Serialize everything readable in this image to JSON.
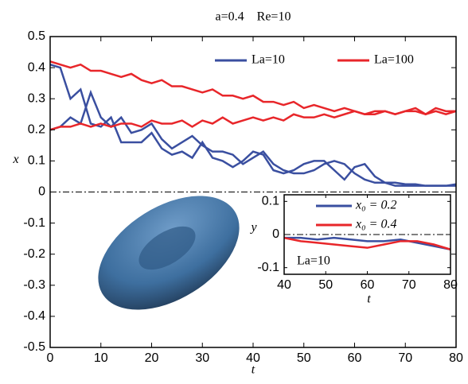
{
  "chart_data": [
    {
      "type": "line",
      "title": "a=0.4    Re=10",
      "xlabel": "t",
      "ylabel": "x",
      "x": [
        0,
        2,
        4,
        6,
        8,
        10,
        12,
        14,
        16,
        18,
        20,
        22,
        24,
        26,
        28,
        30,
        32,
        34,
        36,
        38,
        40,
        42,
        44,
        46,
        48,
        50,
        52,
        54,
        56,
        58,
        60,
        62,
        64,
        66,
        68,
        70,
        72,
        74,
        76,
        78,
        80
      ],
      "xlim": [
        0,
        80
      ],
      "xticks": [
        0,
        10,
        20,
        30,
        40,
        50,
        60,
        70,
        80
      ],
      "ylim": [
        -0.5,
        0.5
      ],
      "yticks": [
        -0.5,
        -0.4,
        -0.3,
        -0.2,
        -0.1,
        0,
        0.1,
        0.2,
        0.3,
        0.4,
        0.5
      ],
      "hline": 0,
      "series": [
        {
          "name": "La=10",
          "color": "#3a4fa0",
          "lines": [
            [
              0.41,
              0.4,
              0.3,
              0.33,
              0.22,
              0.21,
              0.24,
              0.16,
              0.16,
              0.16,
              0.19,
              0.14,
              0.12,
              0.13,
              0.11,
              0.16,
              0.11,
              0.1,
              0.08,
              0.1,
              0.13,
              0.12,
              0.07,
              0.06,
              0.07,
              0.09,
              0.1,
              0.1,
              0.07,
              0.04,
              0.08,
              0.09,
              0.05,
              0.03,
              0.03,
              0.025,
              0.025,
              0.02,
              0.02,
              0.02,
              0.025
            ],
            [
              0.2,
              0.21,
              0.24,
              0.22,
              0.32,
              0.24,
              0.21,
              0.24,
              0.19,
              0.2,
              0.22,
              0.17,
              0.14,
              0.16,
              0.18,
              0.15,
              0.13,
              0.13,
              0.12,
              0.09,
              0.11,
              0.13,
              0.09,
              0.07,
              0.06,
              0.06,
              0.07,
              0.09,
              0.1,
              0.09,
              0.06,
              0.04,
              0.03,
              0.03,
              0.02,
              0.02,
              0.02,
              0.02,
              0.02,
              0.02,
              0.02
            ]
          ]
        },
        {
          "name": "La=100",
          "color": "#e8262a",
          "lines": [
            [
              0.42,
              0.41,
              0.4,
              0.41,
              0.39,
              0.39,
              0.38,
              0.37,
              0.38,
              0.36,
              0.35,
              0.36,
              0.34,
              0.34,
              0.33,
              0.32,
              0.33,
              0.31,
              0.31,
              0.3,
              0.31,
              0.29,
              0.29,
              0.28,
              0.29,
              0.27,
              0.28,
              0.27,
              0.26,
              0.27,
              0.26,
              0.25,
              0.26,
              0.26,
              0.25,
              0.26,
              0.27,
              0.25,
              0.26,
              0.25,
              0.26
            ],
            [
              0.2,
              0.21,
              0.21,
              0.22,
              0.21,
              0.22,
              0.21,
              0.22,
              0.22,
              0.21,
              0.23,
              0.22,
              0.22,
              0.23,
              0.21,
              0.23,
              0.22,
              0.24,
              0.22,
              0.23,
              0.24,
              0.23,
              0.24,
              0.23,
              0.25,
              0.24,
              0.24,
              0.25,
              0.24,
              0.25,
              0.26,
              0.25,
              0.25,
              0.26,
              0.25,
              0.26,
              0.26,
              0.25,
              0.27,
              0.26,
              0.26
            ]
          ]
        }
      ]
    },
    {
      "type": "line",
      "xlabel": "t",
      "ylabel": "y",
      "annotation": "La=10",
      "x": [
        40,
        44,
        48,
        52,
        56,
        60,
        64,
        68,
        72,
        76,
        80
      ],
      "xlim": [
        40,
        80
      ],
      "xticks": [
        40,
        50,
        60,
        70,
        80
      ],
      "ylim": [
        -0.12,
        0.12
      ],
      "yticks": [
        -0.1,
        0,
        0.1
      ],
      "hline": 0,
      "series": [
        {
          "name": "x₀ = 0.2",
          "color": "#3a4fa0",
          "values": [
            -0.01,
            -0.01,
            -0.015,
            -0.01,
            -0.015,
            -0.02,
            -0.02,
            -0.015,
            -0.025,
            -0.035,
            -0.045
          ]
        },
        {
          "name": "x₀ = 0.4",
          "color": "#e8262a",
          "values": [
            -0.01,
            -0.02,
            -0.025,
            -0.03,
            -0.035,
            -0.04,
            -0.03,
            -0.02,
            -0.02,
            -0.03,
            -0.045
          ]
        }
      ]
    }
  ]
}
